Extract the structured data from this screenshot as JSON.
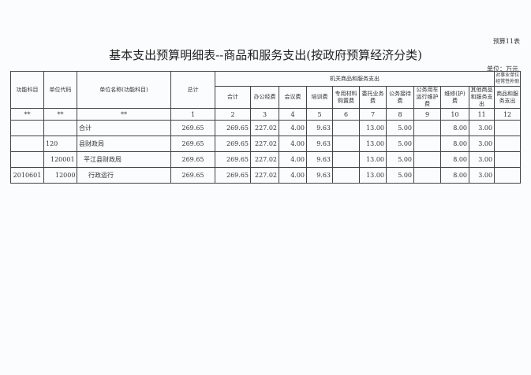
{
  "form_no": "预算11表",
  "title": "基本支出预算明细表--商品和服务支出(按政府预算经济分类)",
  "unit": "单位：万元",
  "headers": {
    "func_subject": "功能科目",
    "unit_code": "单位代码",
    "unit_name": "单位名称(功能科目)",
    "total": "总计",
    "group_org": "机关商品和服务支出",
    "group_subsidy": "对事业单位经常性补助",
    "cols": [
      "合计",
      "办公经费",
      "会议费",
      "培训费",
      "专用材料购置费",
      "委托业务费",
      "公务接待费",
      "公务用车运行维护费",
      "维修(护)费",
      "其他商品和服务支出",
      "商品和服务支出"
    ]
  },
  "index_row": [
    "**",
    "**",
    "**",
    "1",
    "2",
    "3",
    "4",
    "5",
    "6",
    "7",
    "8",
    "9",
    "10",
    "11",
    "12"
  ],
  "rows": [
    {
      "func": "",
      "code": "",
      "name": "合计",
      "vals": [
        "269.65",
        "269.65",
        "227.02",
        "4.00",
        "9.63",
        "",
        "13.00",
        "5.00",
        "",
        "8.00",
        "3.00",
        ""
      ]
    },
    {
      "func": "",
      "code": "120",
      "name": "县财政局",
      "vals": [
        "269.65",
        "269.65",
        "227.02",
        "4.00",
        "9.63",
        "",
        "13.00",
        "5.00",
        "",
        "8.00",
        "3.00",
        ""
      ]
    },
    {
      "func": "",
      "code": "120001",
      "name": "平江县财政局",
      "vals": [
        "269.65",
        "269.65",
        "227.02",
        "4.00",
        "9.63",
        "",
        "13.00",
        "5.00",
        "",
        "8.00",
        "3.00",
        ""
      ]
    },
    {
      "func": "2010601",
      "code": "120001",
      "name": "行政运行",
      "vals": [
        "269.65",
        "269.65",
        "227.02",
        "4.00",
        "9.63",
        "",
        "13.00",
        "5.00",
        "",
        "8.00",
        "3.00",
        ""
      ]
    }
  ]
}
